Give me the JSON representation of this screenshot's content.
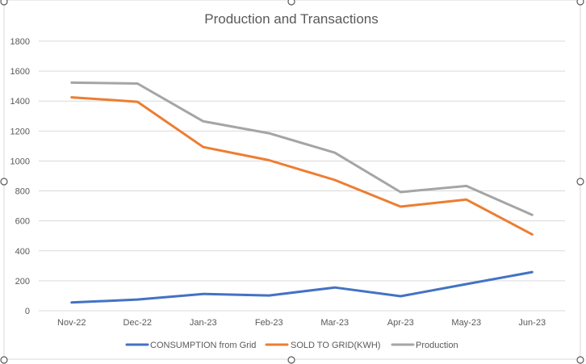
{
  "chart_data": {
    "type": "line",
    "title": "Production and Transactions",
    "categories": [
      "Nov-22",
      "Dec-22",
      "Jan-23",
      "Feb-23",
      "Mar-23",
      "Apr-23",
      "May-23",
      "Jun-23"
    ],
    "yticks": [
      "0",
      "200",
      "400",
      "600",
      "800",
      "1000",
      "1200",
      "1400",
      "1600",
      "1800"
    ],
    "ylim": [
      0,
      1800
    ],
    "grid": true,
    "legend_position": "bottom",
    "series": [
      {
        "name": "CONSUMPTION from Grid",
        "color": "#4472C4",
        "values": [
          55,
          75,
          112,
          102,
          155,
          97,
          178,
          258
        ]
      },
      {
        "name": "SOLD TO GRID(KWH)",
        "color": "#ED7D31",
        "values": [
          1425,
          1395,
          1093,
          1005,
          873,
          695,
          742,
          510
        ]
      },
      {
        "name": "Production",
        "color": "#A5A5A5",
        "values": [
          1523,
          1517,
          1265,
          1185,
          1055,
          792,
          833,
          640
        ]
      }
    ]
  }
}
